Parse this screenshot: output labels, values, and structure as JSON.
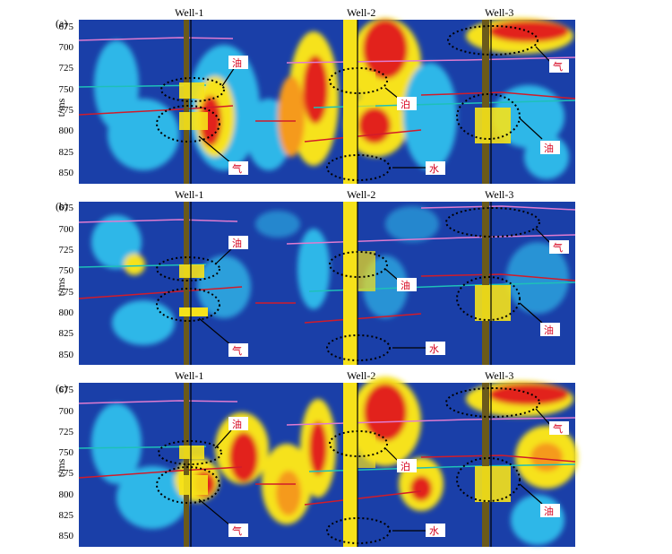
{
  "figure": {
    "y_axis_label": "t/ms",
    "y_ticks": [
      "675",
      "700",
      "725",
      "750",
      "775",
      "800",
      "825",
      "850"
    ],
    "colors": {
      "background": "#1a3fa8",
      "cyan": "#2fb7e8",
      "yellow": "#f6e21a",
      "orange": "#f59a1c",
      "red": "#e2231a",
      "horizon_pink": "#e07bd0",
      "horizon_teal": "#1ec0b8",
      "horizon_red": "#d11c2a",
      "note_red": "#d6001c"
    },
    "panels": [
      {
        "tag": "(a)",
        "wells": [
          "Well-1",
          "Well-2",
          "Well-3"
        ],
        "notes": [
          "油",
          "气",
          "泊",
          "水",
          "气",
          "油"
        ]
      },
      {
        "tag": "(b)",
        "wells": [
          "Well-1",
          "Well-2",
          "Well-3"
        ],
        "notes": [
          "油",
          "气",
          "油",
          "水",
          "气",
          "油"
        ]
      },
      {
        "tag": "(c)",
        "wells": [
          "Well-1",
          "Well-2",
          "Well-3"
        ],
        "notes": [
          "油",
          "气",
          "泊",
          "水",
          "气",
          "油"
        ]
      }
    ]
  }
}
